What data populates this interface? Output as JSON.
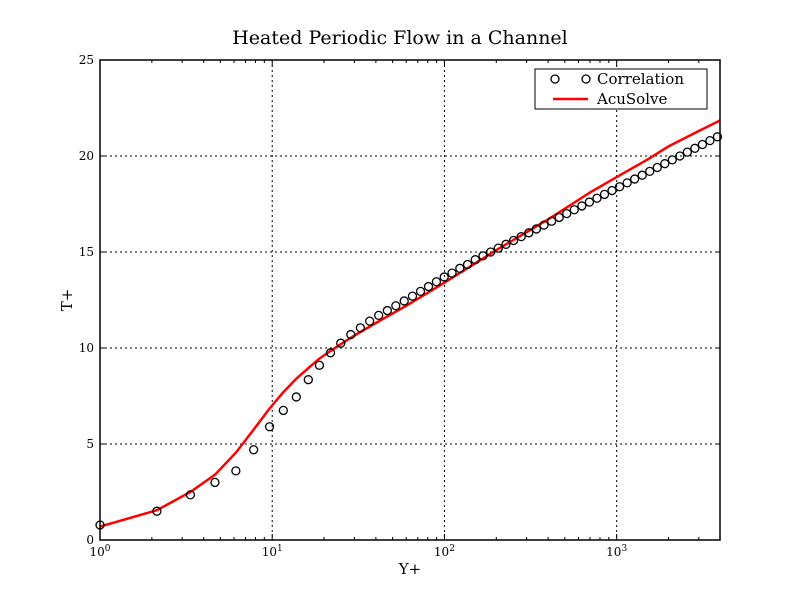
{
  "chart_data": {
    "type": "line",
    "title": "Heated Periodic Flow in a Channel",
    "xlabel": "Y+",
    "ylabel": "T+",
    "xscale": "log",
    "xlim": [
      1,
      3981
    ],
    "ylim": [
      0,
      25
    ],
    "grid": true,
    "legend_position": "upper right",
    "xtick_labels": [
      "10^0",
      "10^1",
      "10^2",
      "10^3"
    ],
    "xticks": [
      1,
      10,
      100,
      1000
    ],
    "yticks": [
      0,
      5,
      10,
      15,
      20,
      25
    ],
    "ytick_labels": [
      "0",
      "5",
      "10",
      "15",
      "20",
      "25"
    ],
    "series": [
      {
        "name": "Correlation",
        "style": "marker-open-circle",
        "color": "#000000",
        "x": [
          1.0,
          2.14,
          3.35,
          4.65,
          6.15,
          7.8,
          9.65,
          11.6,
          13.8,
          16.2,
          18.8,
          21.8,
          25.0,
          28.6,
          32.5,
          36.8,
          41.5,
          46.6,
          52.2,
          58.4,
          65.2,
          72.6,
          80.8,
          89.8,
          99.7,
          110.7,
          122.8,
          136.2,
          151,
          167.4,
          185.5,
          205.5,
          227.6,
          252,
          279,
          309,
          342,
          378.5,
          419,
          463.6,
          513,
          567.5,
          628,
          694.7,
          768.5,
          850,
          940,
          1040,
          1150,
          1272,
          1407,
          1556,
          1721,
          1903,
          2104,
          2327,
          2573,
          2845,
          3146,
          3479,
          3847
        ],
        "y": [
          0.78,
          1.5,
          2.35,
          3.0,
          3.6,
          4.7,
          5.9,
          6.75,
          7.45,
          8.35,
          9.1,
          9.75,
          10.25,
          10.7,
          11.05,
          11.4,
          11.7,
          11.95,
          12.2,
          12.45,
          12.7,
          12.95,
          13.2,
          13.45,
          13.7,
          13.9,
          14.15,
          14.35,
          14.6,
          14.8,
          15.0,
          15.2,
          15.4,
          15.6,
          15.8,
          16.0,
          16.2,
          16.4,
          16.6,
          16.8,
          17.0,
          17.2,
          17.4,
          17.6,
          17.8,
          18.0,
          18.2,
          18.4,
          18.6,
          18.8,
          19.0,
          19.2,
          19.4,
          19.6,
          19.8,
          20.0,
          20.2,
          20.4,
          20.6,
          20.8,
          21.0
        ]
      },
      {
        "name": "AcuSolve",
        "style": "line",
        "color": "#ff0000",
        "x": [
          1.0,
          2.14,
          3.35,
          4.65,
          6.15,
          7.8,
          9.65,
          11.6,
          13.8,
          16.2,
          18.8,
          21.8,
          25.0,
          30,
          40,
          60,
          100,
          200,
          400,
          700,
          1000,
          1500,
          2000,
          3000,
          3981
        ],
        "y": [
          0.7,
          1.55,
          2.5,
          3.4,
          4.55,
          5.75,
          6.85,
          7.7,
          8.4,
          8.95,
          9.45,
          9.85,
          10.2,
          10.65,
          11.3,
          12.2,
          13.4,
          15.1,
          16.7,
          18.1,
          18.9,
          19.8,
          20.5,
          21.3,
          21.85
        ]
      }
    ]
  },
  "legend": {
    "items": [
      {
        "label": "Correlation"
      },
      {
        "label": "AcuSolve"
      }
    ]
  }
}
